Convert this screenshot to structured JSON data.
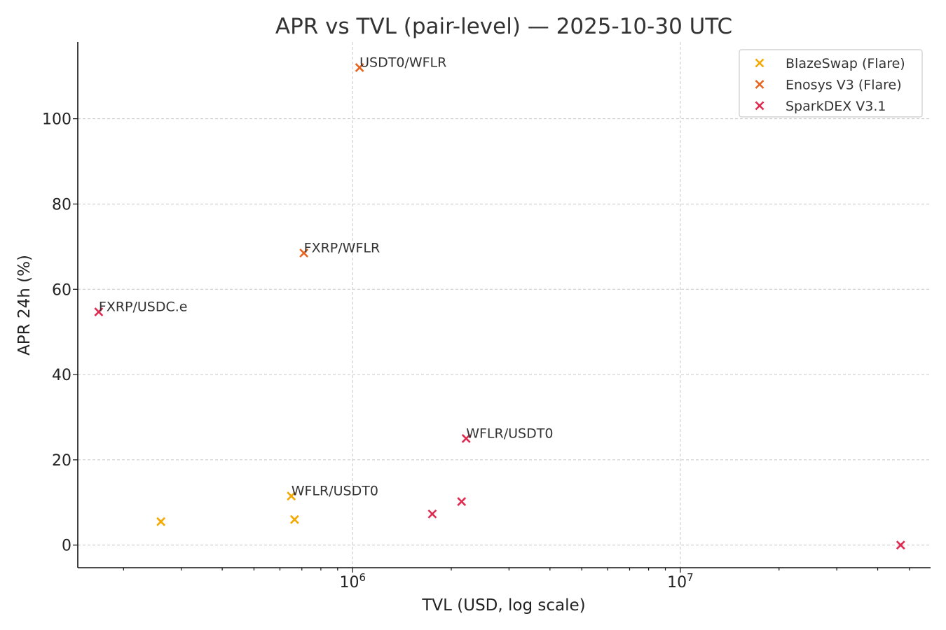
{
  "chart_data": {
    "type": "scatter",
    "title": "APR vs TVL (pair-level) — 2025-10-30 UTC",
    "xlabel": "TVL (USD, log scale)",
    "ylabel": "APR 24h (%)",
    "x_scale": "log",
    "xlim": [
      145000,
      58000000
    ],
    "ylim": [
      -5.3,
      118
    ],
    "x_major_ticks": [
      {
        "base": "10",
        "exp": "6",
        "value": 1000000
      },
      {
        "base": "10",
        "exp": "7",
        "value": 10000000
      }
    ],
    "y_ticks": [
      0,
      20,
      40,
      60,
      80,
      100
    ],
    "y_tick_labels": [
      "0",
      "20",
      "40",
      "60",
      "80",
      "100"
    ],
    "grid": true,
    "legend_position": "top-right",
    "marker": "x",
    "series": [
      {
        "name": "BlazeSwap (Flare)",
        "color": "#f5a800",
        "points": [
          {
            "x": 260000,
            "y": 5.5,
            "label": ""
          },
          {
            "x": 650000,
            "y": 11.5,
            "label": "WFLR/USDT0"
          },
          {
            "x": 665000,
            "y": 6.0,
            "label": ""
          }
        ]
      },
      {
        "name": "Enosys V3 (Flare)",
        "color": "#e8641e",
        "points": [
          {
            "x": 710000,
            "y": 68.5,
            "label": "FXRP/WFLR"
          },
          {
            "x": 1050000,
            "y": 112.0,
            "label": "USDT0/WFLR"
          }
        ]
      },
      {
        "name": "SparkDEX V3.1",
        "color": "#e0294f",
        "points": [
          {
            "x": 168000,
            "y": 54.7,
            "label": "FXRP/USDC.e"
          },
          {
            "x": 1750000,
            "y": 7.3,
            "label": ""
          },
          {
            "x": 2150000,
            "y": 10.2,
            "label": ""
          },
          {
            "x": 2220000,
            "y": 25.0,
            "label": "WFLR/USDT0"
          },
          {
            "x": 47000000,
            "y": 0.0,
            "label": ""
          }
        ]
      }
    ]
  }
}
